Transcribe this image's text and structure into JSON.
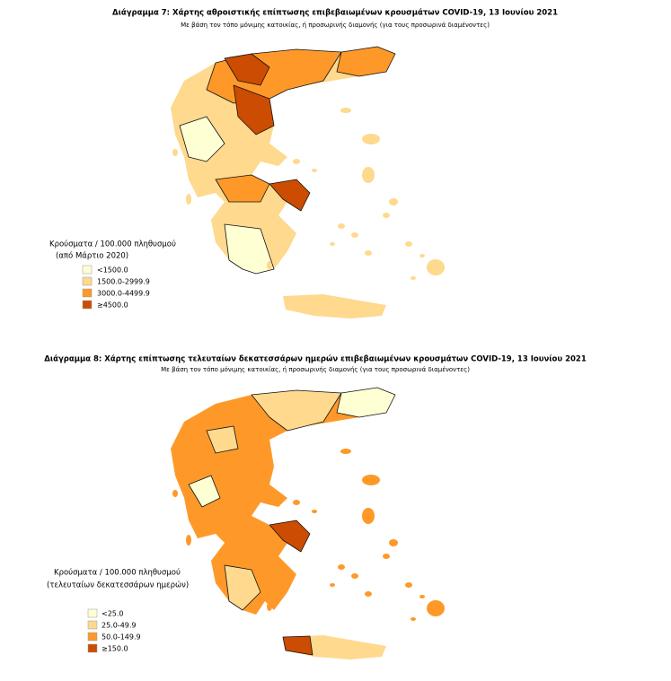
{
  "maps": [
    {
      "title": "Διάγραμμα 7: Χάρτης αθροιστικής επίπτωσης επιβεβαιωμένων κρουσμάτων COVID-19, 13 Ιουνίου 2021",
      "subtitle": "Με βάση τον τόπο μόνιμης κατοικίας, ή προσωρινής διαμονής (για τους προσωρινά διαμένοντες)",
      "legend": {
        "title": "Κρούσματα / 100.000 πληθυσμού",
        "subtitle": "(από Μάρτιο 2020)",
        "items": [
          "<1500.0",
          "1500.0-2999.9",
          "3000.0-4499.9",
          "≥4500.0"
        ]
      }
    },
    {
      "title": "Διάγραμμα 8: Χάρτης επίπτωσης τελευταίων δεκατεσσάρων ημερών επιβεβαιωμένων κρουσμάτων COVID-19, 13 Ιουνίου 2021",
      "subtitle": "Με βάση τον τόπο μόνιμης κατοικίας, ή προσωρινής διαμονής (για τους προσωρινά διαμένοντες)",
      "legend": {
        "title": "Κρούσματα / 100.000 πληθυσμού",
        "subtitle": "(τελευταίων δεκατεσσάρων ημερών)",
        "items": [
          "<25.0",
          "25.0-49.9",
          "50.0-149.9",
          "≥150.0"
        ]
      }
    }
  ]
}
